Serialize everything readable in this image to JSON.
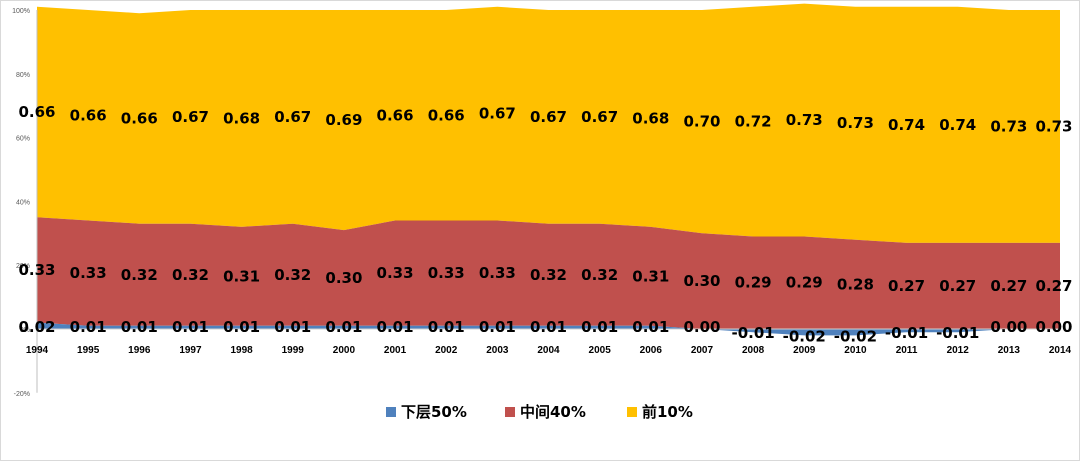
{
  "chart_data": {
    "type": "area",
    "stacked": true,
    "x": [
      "1994",
      "1995",
      "1996",
      "1997",
      "1998",
      "1999",
      "2000",
      "2001",
      "2002",
      "2003",
      "2004",
      "2005",
      "2006",
      "2007",
      "2008",
      "2009",
      "2010",
      "2011",
      "2012",
      "2013",
      "2014"
    ],
    "series": [
      {
        "name": "下层50%",
        "color": "#4f81bd",
        "values": [
          0.02,
          0.01,
          0.01,
          0.01,
          0.01,
          0.01,
          0.01,
          0.01,
          0.01,
          0.01,
          0.01,
          0.01,
          0.01,
          0.0,
          -0.01,
          -0.02,
          -0.02,
          -0.01,
          -0.01,
          0.0,
          0.0
        ],
        "labels": [
          "0.02",
          "0.01",
          "0.01",
          "0.01",
          "0.01",
          "0.01",
          "0.01",
          "0.01",
          "0.01",
          "0.01",
          "0.01",
          "0.01",
          "0.01",
          "0.00",
          "-0.01",
          "-0.02",
          "-0.02",
          "-0.01",
          "-0.01",
          "0.00",
          "0.00"
        ]
      },
      {
        "name": "中间40%",
        "color": "#c0504d",
        "values": [
          0.33,
          0.33,
          0.32,
          0.32,
          0.31,
          0.32,
          0.3,
          0.33,
          0.33,
          0.33,
          0.32,
          0.32,
          0.31,
          0.3,
          0.29,
          0.29,
          0.28,
          0.27,
          0.27,
          0.27,
          0.27
        ],
        "labels": [
          "0.33",
          "0.33",
          "0.32",
          "0.32",
          "0.31",
          "0.32",
          "0.30",
          "0.33",
          "0.33",
          "0.33",
          "0.32",
          "0.32",
          "0.31",
          "0.30",
          "0.29",
          "0.29",
          "0.28",
          "0.27",
          "0.27",
          "0.27",
          "0.27"
        ]
      },
      {
        "name": "前10%",
        "color": "#ffc000",
        "values": [
          0.66,
          0.66,
          0.66,
          0.67,
          0.68,
          0.67,
          0.69,
          0.66,
          0.66,
          0.67,
          0.67,
          0.67,
          0.68,
          0.7,
          0.72,
          0.73,
          0.73,
          0.74,
          0.74,
          0.73,
          0.73
        ],
        "labels": [
          "0.66",
          "0.66",
          "0.66",
          "0.67",
          "0.68",
          "0.67",
          "0.69",
          "0.66",
          "0.66",
          "0.67",
          "0.67",
          "0.67",
          "0.68",
          "0.70",
          "0.72",
          "0.73",
          "0.73",
          "0.74",
          "0.74",
          "0.73",
          "0.73"
        ]
      }
    ],
    "ylim": [
      -0.2,
      1.0
    ],
    "yticks": [
      -0.2,
      0,
      0.2,
      0.4,
      0.6,
      0.8,
      1.0
    ],
    "ytick_labels": [
      "-20%",
      "0%",
      "20%",
      "40%",
      "60%",
      "80%",
      "100%"
    ],
    "grid": false,
    "legend": "bottom-center",
    "title": "",
    "xlabel": "",
    "ylabel": ""
  }
}
